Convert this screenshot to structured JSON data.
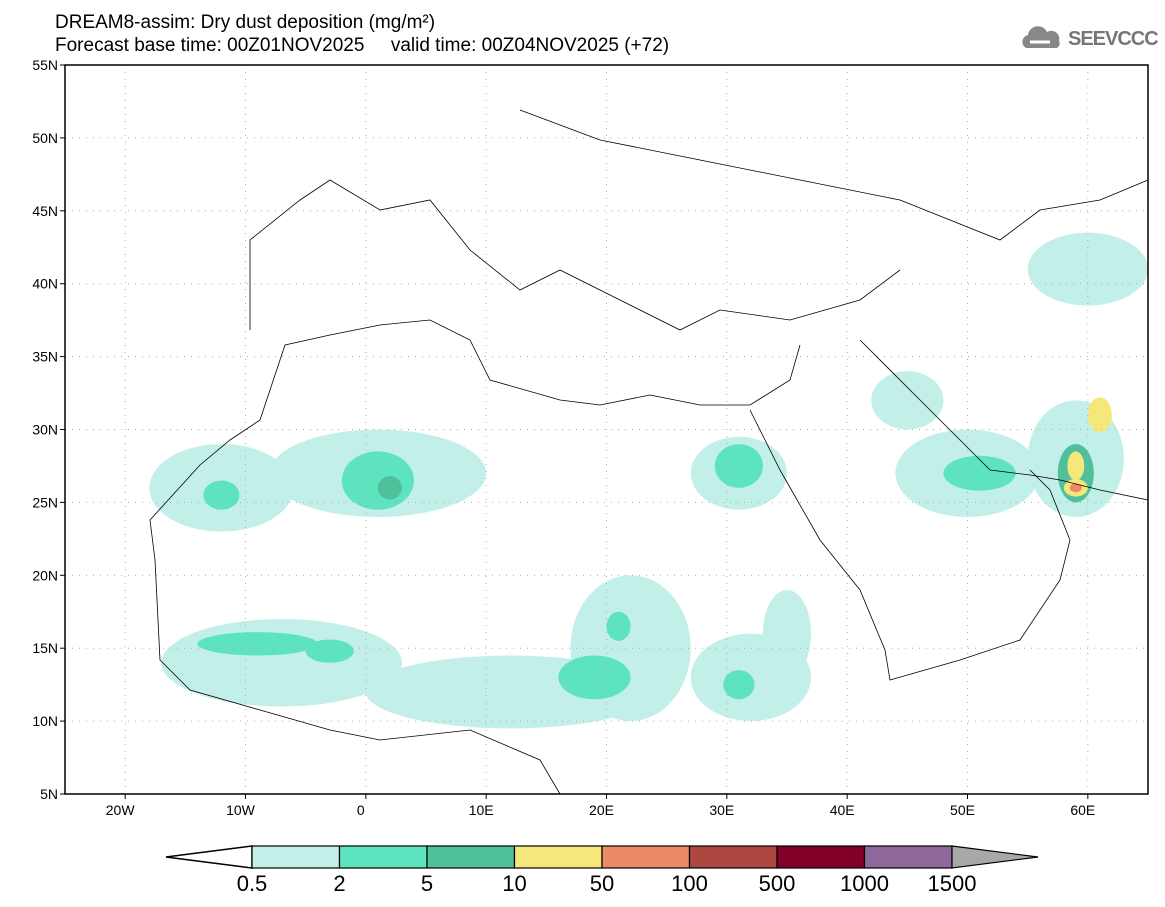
{
  "header": {
    "title": "DREAM8-assim: Dry dust deposition (mg/m²)",
    "subtitle": "Forecast base time: 00Z01NOV2025     valid time: 00Z04NOV2025 (+72)",
    "logo_text": "SEEVCCC"
  },
  "map": {
    "lon_range": [
      -25,
      65
    ],
    "lat_range": [
      5,
      55
    ],
    "lat_labels": [
      {
        "v": 55,
        "t": "55N"
      },
      {
        "v": 50,
        "t": "50N"
      },
      {
        "v": 45,
        "t": "45N"
      },
      {
        "v": 40,
        "t": "40N"
      },
      {
        "v": 35,
        "t": "35N"
      },
      {
        "v": 30,
        "t": "30N"
      },
      {
        "v": 25,
        "t": "25N"
      },
      {
        "v": 20,
        "t": "20N"
      },
      {
        "v": 15,
        "t": "15N"
      },
      {
        "v": 10,
        "t": "10N"
      },
      {
        "v": 5,
        "t": "5N"
      }
    ],
    "lon_labels": [
      {
        "v": -20,
        "t": "20W"
      },
      {
        "v": -10,
        "t": "10W"
      },
      {
        "v": 0,
        "t": "0"
      },
      {
        "v": 10,
        "t": "10E"
      },
      {
        "v": 20,
        "t": "20E"
      },
      {
        "v": 30,
        "t": "30E"
      },
      {
        "v": 40,
        "t": "40E"
      },
      {
        "v": 50,
        "t": "50E"
      },
      {
        "v": 60,
        "t": "60E"
      }
    ],
    "dust_areas": [
      {
        "lon": -12,
        "lat": 26,
        "rl": 6,
        "rt": 3,
        "level": 0
      },
      {
        "lon": -12,
        "lat": 25.5,
        "rl": 1.5,
        "rt": 1,
        "level": 1
      },
      {
        "lon": 1,
        "lat": 27,
        "rl": 9,
        "rt": 3,
        "level": 0
      },
      {
        "lon": 1,
        "lat": 26.5,
        "rl": 3,
        "rt": 2,
        "level": 1
      },
      {
        "lon": 2,
        "lat": 26,
        "rl": 1,
        "rt": 0.8,
        "level": 2
      },
      {
        "lon": 31,
        "lat": 27,
        "rl": 4,
        "rt": 2.5,
        "level": 0
      },
      {
        "lon": 31,
        "lat": 27.5,
        "rl": 2,
        "rt": 1.5,
        "level": 1
      },
      {
        "lon": -7,
        "lat": 14,
        "rl": 10,
        "rt": 3,
        "level": 0
      },
      {
        "lon": -9,
        "lat": 15.3,
        "rl": 5,
        "rt": 0.8,
        "level": 1
      },
      {
        "lon": -3,
        "lat": 14.8,
        "rl": 2,
        "rt": 0.8,
        "level": 1
      },
      {
        "lon": 12,
        "lat": 12,
        "rl": 12,
        "rt": 2.5,
        "level": 0
      },
      {
        "lon": 22,
        "lat": 15,
        "rl": 5,
        "rt": 5,
        "level": 0
      },
      {
        "lon": 19,
        "lat": 13,
        "rl": 3,
        "rt": 1.5,
        "level": 1
      },
      {
        "lon": 21,
        "lat": 16.5,
        "rl": 1,
        "rt": 1,
        "level": 1
      },
      {
        "lon": 32,
        "lat": 13,
        "rl": 5,
        "rt": 3,
        "level": 0
      },
      {
        "lon": 31,
        "lat": 12.5,
        "rl": 1.3,
        "rt": 1,
        "level": 1
      },
      {
        "lon": 35,
        "lat": 16,
        "rl": 2,
        "rt": 3,
        "level": 0
      },
      {
        "lon": 50,
        "lat": 27,
        "rl": 6,
        "rt": 3,
        "level": 0
      },
      {
        "lon": 51,
        "lat": 27,
        "rl": 3,
        "rt": 1.2,
        "level": 1
      },
      {
        "lon": 59,
        "lat": 28,
        "rl": 4,
        "rt": 4,
        "level": 0
      },
      {
        "lon": 59,
        "lat": 27,
        "rl": 1.5,
        "rt": 2,
        "level": 2
      },
      {
        "lon": 59,
        "lat": 27.5,
        "rl": 0.7,
        "rt": 1,
        "level": 3
      },
      {
        "lon": 59,
        "lat": 26,
        "rl": 1,
        "rt": 0.6,
        "level": 3
      },
      {
        "lon": 59,
        "lat": 26,
        "rl": 0.5,
        "rt": 0.3,
        "level": 4
      },
      {
        "lon": 61,
        "lat": 31,
        "rl": 1,
        "rt": 1.2,
        "level": 3
      },
      {
        "lon": 60,
        "lat": 41,
        "rl": 5,
        "rt": 2.5,
        "level": 0
      },
      {
        "lon": 45,
        "lat": 32,
        "rl": 3,
        "rt": 2,
        "level": 0
      }
    ]
  },
  "colorbar": {
    "colors": [
      "#c2f0e8",
      "#5de4bf",
      "#50bf9c",
      "#f5e77a",
      "#eb8a67",
      "#ad4840",
      "#820028",
      "#8e689a"
    ],
    "over_color": "#a8a8a8",
    "labels": [
      "0.5",
      "2",
      "5",
      "10",
      "50",
      "100",
      "500",
      "1000",
      "1500"
    ]
  }
}
